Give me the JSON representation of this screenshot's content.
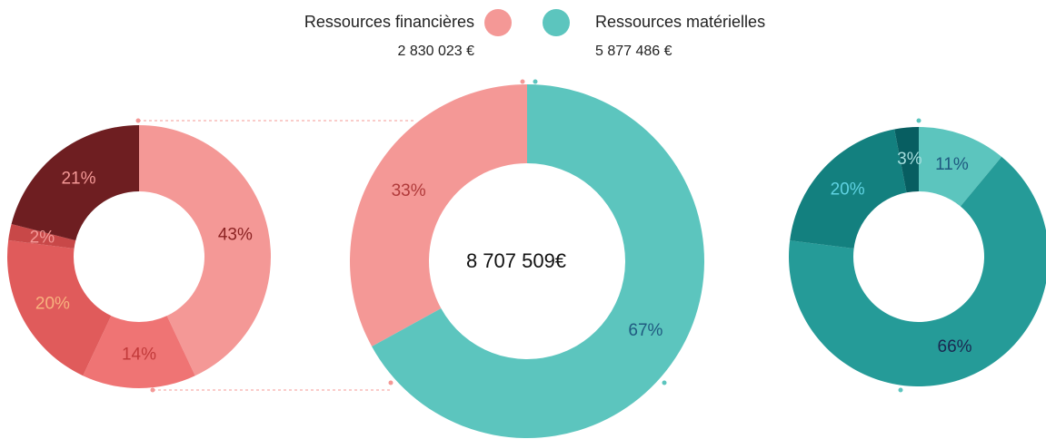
{
  "chart_data": [
    {
      "type": "donut",
      "values": [
        43,
        14,
        20,
        2,
        21
      ],
      "value_labels": [
        "43%",
        "14%",
        "20%",
        "2%",
        "21%"
      ],
      "colors": [
        "#f49896",
        "#ef7474",
        "#e05b5b",
        "#c84848",
        "#6e1e21"
      ],
      "label_colors": [
        "#8b2222",
        "#c23a3a",
        "#f8b27e",
        "#f49896",
        "#f49896"
      ]
    },
    {
      "type": "donut",
      "categories": [
        "Ressources financières",
        "Ressources matérielles"
      ],
      "totals": [
        "2 830 023 €",
        "5 877 486 €"
      ],
      "values": [
        33,
        67
      ],
      "value_labels": [
        "33%",
        "67%"
      ],
      "colors": [
        "#f49896",
        "#5cc5be"
      ],
      "label_colors": [
        "#b03a3a",
        "#1f5a80"
      ],
      "center_label": "8 707 509€"
    },
    {
      "type": "donut",
      "values": [
        11,
        66,
        20,
        3
      ],
      "value_labels": [
        "11%",
        "66%",
        "20%",
        "3%"
      ],
      "colors": [
        "#5cc5be",
        "#259b98",
        "#13807f",
        "#075e61"
      ],
      "label_colors": [
        "#1f5a80",
        "#1a2750",
        "#5fd2e2",
        "#a5dede"
      ]
    }
  ]
}
